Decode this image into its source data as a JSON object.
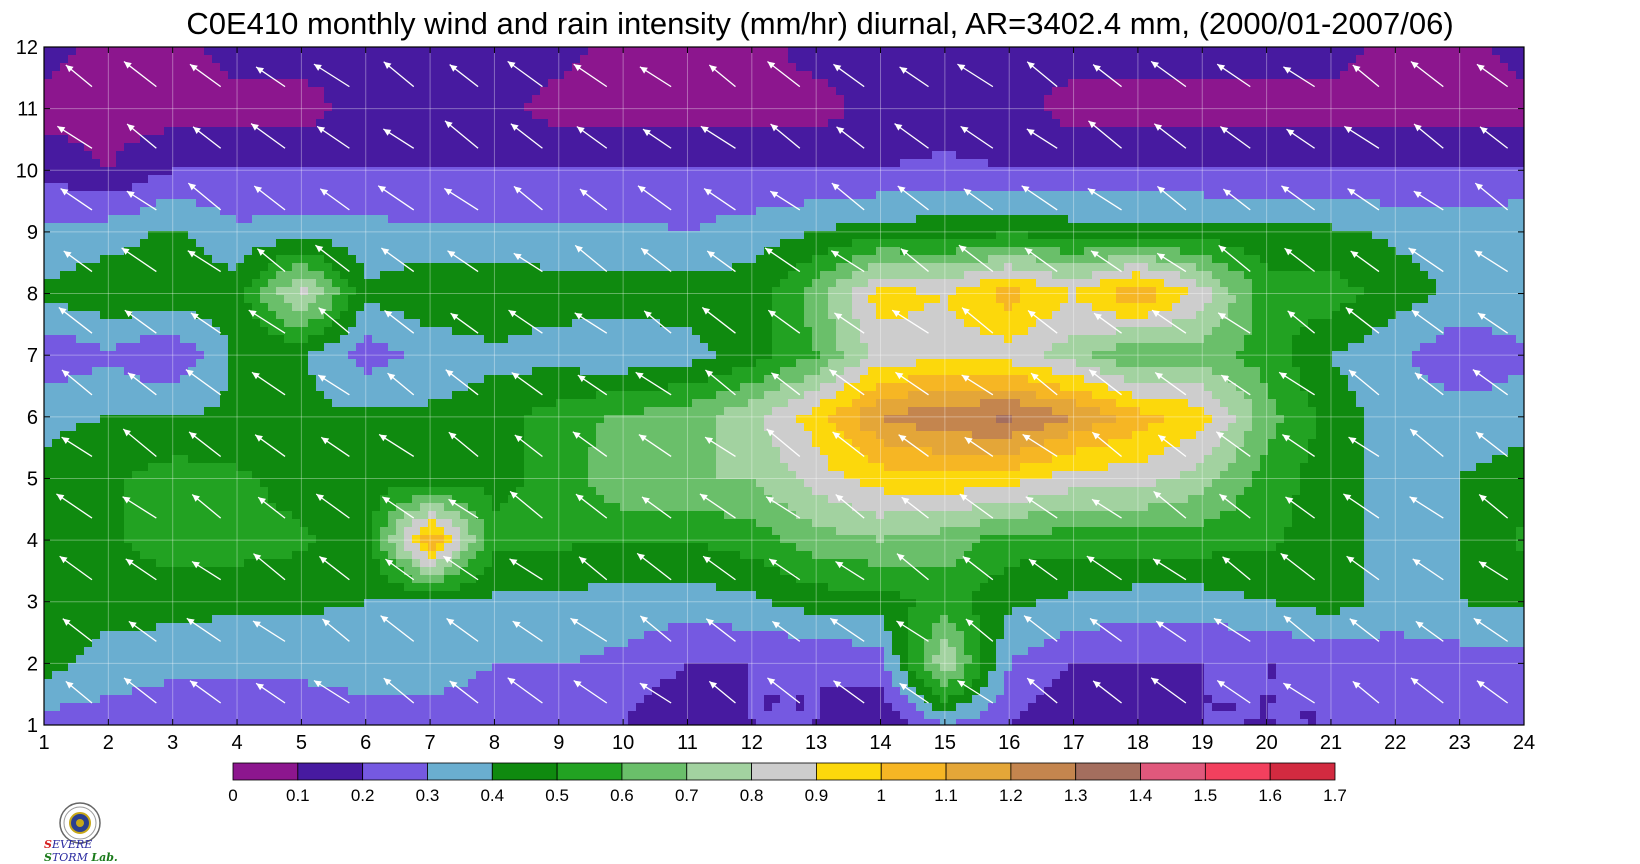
{
  "chart_data": {
    "type": "heatmap",
    "subtype": "filled-contour with wind vectors",
    "title": "C0E410 monthly wind and rain intensity (mm/hr) diurnal, AR=3402.4 mm, (2000/01-2007/06)",
    "xlabel": "",
    "ylabel": "",
    "x": [
      1,
      2,
      3,
      4,
      5,
      6,
      7,
      8,
      9,
      10,
      11,
      12,
      13,
      14,
      15,
      16,
      17,
      18,
      19,
      20,
      21,
      22,
      23,
      24
    ],
    "y": [
      1,
      2,
      3,
      4,
      5,
      6,
      7,
      8,
      9,
      10,
      11,
      12
    ],
    "xlim": [
      1,
      24
    ],
    "ylim": [
      1,
      12
    ],
    "x_ticks": [
      "1",
      "2",
      "3",
      "4",
      "5",
      "6",
      "7",
      "8",
      "9",
      "10",
      "11",
      "12",
      "13",
      "14",
      "15",
      "16",
      "17",
      "18",
      "19",
      "20",
      "21",
      "22",
      "23",
      "24"
    ],
    "y_ticks": [
      "1",
      "2",
      "3",
      "4",
      "5",
      "6",
      "7",
      "8",
      "9",
      "10",
      "11",
      "12"
    ],
    "rain_intensity": [
      [
        0.25,
        0.25,
        0.25,
        0.25,
        0.25,
        0.25,
        0.25,
        0.25,
        0.22,
        0.2,
        0.1,
        0.2,
        0.2,
        0.1,
        0.3,
        0.2,
        0.1,
        0.15,
        0.2,
        0.2,
        0.2,
        0.2,
        0.2,
        0.25
      ],
      [
        0.45,
        0.35,
        0.32,
        0.32,
        0.32,
        0.35,
        0.35,
        0.3,
        0.3,
        0.28,
        0.2,
        0.2,
        0.2,
        0.25,
        0.8,
        0.3,
        0.2,
        0.2,
        0.2,
        0.2,
        0.2,
        0.25,
        0.25,
        0.25
      ],
      [
        0.45,
        0.45,
        0.45,
        0.42,
        0.42,
        0.4,
        0.4,
        0.38,
        0.38,
        0.35,
        0.35,
        0.38,
        0.45,
        0.45,
        0.55,
        0.42,
        0.38,
        0.35,
        0.35,
        0.4,
        0.45,
        0.35,
        0.4,
        0.42
      ],
      [
        0.45,
        0.48,
        0.55,
        0.55,
        0.52,
        0.45,
        1.1,
        0.52,
        0.52,
        0.5,
        0.5,
        0.55,
        0.65,
        0.7,
        0.65,
        0.55,
        0.55,
        0.55,
        0.55,
        0.52,
        0.45,
        0.35,
        0.4,
        0.52
      ],
      [
        0.42,
        0.48,
        0.55,
        0.52,
        0.45,
        0.45,
        0.45,
        0.48,
        0.52,
        0.7,
        0.7,
        0.7,
        0.85,
        0.95,
        0.98,
        0.95,
        0.85,
        0.85,
        0.75,
        0.55,
        0.45,
        0.35,
        0.4,
        0.45
      ],
      [
        0.38,
        0.4,
        0.4,
        0.42,
        0.42,
        0.42,
        0.42,
        0.45,
        0.55,
        0.62,
        0.65,
        0.78,
        0.95,
        1.2,
        1.28,
        1.32,
        1.2,
        1.05,
        0.95,
        0.65,
        0.45,
        0.35,
        0.35,
        0.35
      ],
      [
        0.22,
        0.28,
        0.2,
        0.42,
        0.42,
        0.25,
        0.33,
        0.38,
        0.35,
        0.32,
        0.36,
        0.45,
        0.6,
        0.85,
        0.85,
        0.85,
        0.75,
        0.6,
        0.65,
        0.55,
        0.4,
        0.32,
        0.22,
        0.28
      ],
      [
        0.42,
        0.48,
        0.48,
        0.45,
        0.85,
        0.42,
        0.48,
        0.48,
        0.45,
        0.45,
        0.45,
        0.45,
        0.65,
        0.95,
        0.9,
        1.05,
        0.9,
        1.1,
        0.85,
        0.55,
        0.55,
        0.45,
        0.38,
        0.38
      ],
      [
        0.32,
        0.35,
        0.42,
        0.32,
        0.35,
        0.33,
        0.32,
        0.32,
        0.32,
        0.32,
        0.3,
        0.35,
        0.4,
        0.45,
        0.45,
        0.48,
        0.45,
        0.45,
        0.45,
        0.42,
        0.42,
        0.38,
        0.35,
        0.4
      ],
      [
        0.18,
        0.1,
        0.2,
        0.2,
        0.2,
        0.2,
        0.2,
        0.2,
        0.2,
        0.22,
        0.22,
        0.2,
        0.2,
        0.2,
        0.22,
        0.2,
        0.2,
        0.2,
        0.2,
        0.2,
        0.2,
        0.2,
        0.2,
        0.2
      ],
      [
        0.05,
        0.05,
        0.05,
        0.05,
        0.05,
        0.15,
        0.15,
        0.15,
        0.05,
        0.05,
        0.05,
        0.05,
        0.05,
        0.15,
        0.15,
        0.15,
        0.05,
        0.05,
        0.05,
        0.05,
        0.05,
        0.05,
        0.05,
        0.05
      ],
      [
        0.15,
        0.05,
        0.05,
        0.15,
        0.15,
        0.15,
        0.15,
        0.15,
        0.15,
        0.05,
        0.05,
        0.05,
        0.15,
        0.15,
        0.15,
        0.15,
        0.15,
        0.15,
        0.15,
        0.15,
        0.15,
        0.05,
        0.05,
        0.15
      ]
    ],
    "wind_vector_direction": "from east-southeast (arrows point toward upper-left) at most grid points",
    "colorbar": {
      "levels": [
        "0",
        "0.1",
        "0.2",
        "0.3",
        "0.4",
        "0.5",
        "0.6",
        "0.7",
        "0.8",
        "0.9",
        "1",
        "1.1",
        "1.2",
        "1.3",
        "1.4",
        "1.5",
        "1.6",
        "1.7"
      ],
      "colors": [
        "#8c168e",
        "#471aa0",
        "#7559e1",
        "#6aaed0",
        "#0f8a0f",
        "#22a222",
        "#6abf6a",
        "#a2d2a0",
        "#cdcdcd",
        "#fcd80c",
        "#f6b624",
        "#e4a638",
        "#c4854e",
        "#a46e5e",
        "#e0587c",
        "#f2405e",
        "#d22a40"
      ]
    },
    "contour_line_color": "#f5a623",
    "grid": true,
    "legend": "bottom colorbar"
  },
  "logo": {
    "line1": "S",
    "line2": "EVERE",
    "line3": "S",
    "line4": "TORM",
    "line5": "Lab."
  }
}
